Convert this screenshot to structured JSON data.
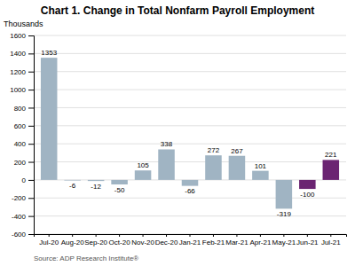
{
  "chart_data": {
    "type": "bar",
    "title": "Chart 1. Change in Total Nonfarm Payroll Employment",
    "ylabel": "Thousands",
    "annotations": [
      "Source: ADP Research Institute®"
    ],
    "categories": [
      "Jul-20",
      "Aug-20",
      "Sep-20",
      "Oct-20",
      "Nov-20",
      "Dec-20",
      "Jan-21",
      "Feb-21",
      "Mar-21",
      "Apr-21",
      "May-21",
      "Jun-21",
      "Jul-21"
    ],
    "values": [
      1353,
      -6,
      -12,
      -50,
      105,
      338,
      -66,
      272,
      267,
      101,
      -319,
      -100,
      221
    ],
    "colors": [
      "#a0b4c3",
      "#a0b4c3",
      "#a0b4c3",
      "#a0b4c3",
      "#a0b4c3",
      "#a0b4c3",
      "#a0b4c3",
      "#a0b4c3",
      "#a0b4c3",
      "#a0b4c3",
      "#a0b4c3",
      "#6b2472",
      "#6b2472"
    ],
    "ylim": [
      -600,
      1600
    ],
    "yticks": [
      -600,
      -400,
      -200,
      0,
      200,
      400,
      600,
      800,
      1000,
      1200,
      1400,
      1600
    ],
    "grid": true,
    "data_labels": true
  }
}
